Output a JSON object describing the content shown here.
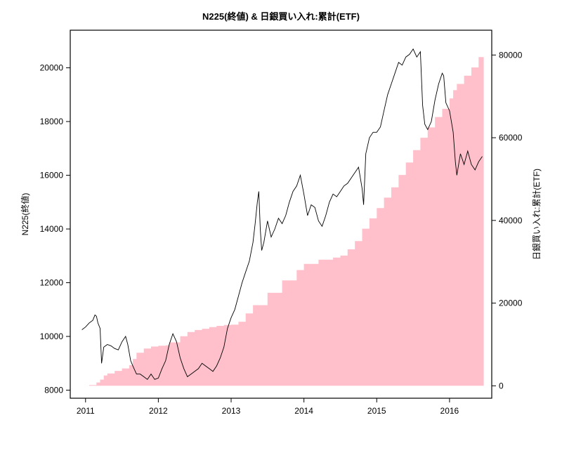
{
  "chart_data": {
    "type": "area+line",
    "title": "N225(終値) & 日銀買い入れ:累計(ETF)",
    "ylabel_left": "N225(終値)",
    "ylabel_right": "日銀買い入れ:累計(ETF)",
    "xlabel": "",
    "x_ticks": [
      "2011",
      "2012",
      "2013",
      "2014",
      "2015",
      "2016"
    ],
    "xlim": [
      2010.79,
      2016.58
    ],
    "ylim_left": [
      7700,
      21400
    ],
    "ylim_right": [
      -3000,
      86000
    ],
    "y_ticks_left": [
      8000,
      10000,
      12000,
      14000,
      16000,
      18000,
      20000
    ],
    "y_ticks_right": [
      0,
      20000,
      40000,
      60000,
      80000
    ],
    "grid": false,
    "legend": "none",
    "series": [
      {
        "label": "N225(終値)",
        "kind": "line",
        "axis": "left",
        "color": "#000000",
        "x": [
          2010.95,
          2011.0,
          2011.05,
          2011.1,
          2011.13,
          2011.15,
          2011.17,
          2011.2,
          2011.22,
          2011.25,
          2011.3,
          2011.35,
          2011.4,
          2011.45,
          2011.5,
          2011.55,
          2011.58,
          2011.62,
          2011.65,
          2011.7,
          2011.75,
          2011.8,
          2011.85,
          2011.9,
          2011.95,
          2012.0,
          2012.05,
          2012.1,
          2012.15,
          2012.2,
          2012.25,
          2012.3,
          2012.35,
          2012.4,
          2012.45,
          2012.5,
          2012.55,
          2012.6,
          2012.65,
          2012.7,
          2012.75,
          2012.8,
          2012.85,
          2012.9,
          2012.95,
          2013.0,
          2013.05,
          2013.1,
          2013.15,
          2013.2,
          2013.25,
          2013.3,
          2013.33,
          2013.36,
          2013.38,
          2013.4,
          2013.42,
          2013.45,
          2013.5,
          2013.55,
          2013.6,
          2013.65,
          2013.7,
          2013.75,
          2013.8,
          2013.85,
          2013.9,
          2013.95,
          2014.0,
          2014.05,
          2014.1,
          2014.15,
          2014.2,
          2014.25,
          2014.3,
          2014.35,
          2014.4,
          2014.45,
          2014.5,
          2014.55,
          2014.6,
          2014.65,
          2014.7,
          2014.75,
          2014.8,
          2014.82,
          2014.85,
          2014.9,
          2014.95,
          2015.0,
          2015.05,
          2015.1,
          2015.15,
          2015.2,
          2015.25,
          2015.3,
          2015.35,
          2015.4,
          2015.45,
          2015.5,
          2015.55,
          2015.6,
          2015.63,
          2015.66,
          2015.7,
          2015.75,
          2015.8,
          2015.85,
          2015.9,
          2015.92,
          2015.95,
          2016.0,
          2016.05,
          2016.08,
          2016.1,
          2016.15,
          2016.2,
          2016.25,
          2016.3,
          2016.35,
          2016.4,
          2016.45
        ],
        "values": [
          10250,
          10350,
          10500,
          10600,
          10800,
          10750,
          10500,
          10300,
          9000,
          9600,
          9700,
          9650,
          9550,
          9500,
          9800,
          10000,
          9700,
          9100,
          8900,
          8600,
          8600,
          8500,
          8400,
          8600,
          8400,
          8450,
          8800,
          9100,
          9700,
          10100,
          9800,
          9200,
          8800,
          8500,
          8600,
          8700,
          8800,
          9000,
          8900,
          8800,
          8700,
          8900,
          9200,
          9600,
          10300,
          10700,
          11000,
          11500,
          12000,
          12400,
          12800,
          13500,
          14200,
          15000,
          15400,
          14000,
          13200,
          13500,
          14300,
          13700,
          14000,
          14400,
          14200,
          14500,
          15000,
          15400,
          15600,
          16000,
          15300,
          14500,
          14900,
          14800,
          14300,
          14100,
          14500,
          15000,
          15300,
          15200,
          15400,
          15600,
          15700,
          15900,
          16100,
          16300,
          15500,
          14900,
          16800,
          17400,
          17600,
          17600,
          17800,
          18400,
          19000,
          19400,
          19800,
          20200,
          20100,
          20400,
          20500,
          20700,
          20400,
          20600,
          18600,
          17900,
          17700,
          18000,
          18800,
          19400,
          19800,
          19700,
          18700,
          18400,
          17600,
          16500,
          16000,
          16800,
          16400,
          16900,
          16400,
          16200,
          16500,
          16700
        ]
      },
      {
        "label": "日銀買い入れ:累計(ETF)",
        "kind": "area",
        "axis": "right",
        "color": "#FFC0CB",
        "x": [
          2010.95,
          2011.05,
          2011.15,
          2011.2,
          2011.25,
          2011.3,
          2011.4,
          2011.5,
          2011.6,
          2011.65,
          2011.7,
          2011.8,
          2011.9,
          2012.0,
          2012.1,
          2012.15,
          2012.3,
          2012.4,
          2012.5,
          2012.6,
          2012.7,
          2012.8,
          2012.9,
          2013.0,
          2013.1,
          2013.2,
          2013.3,
          2013.5,
          2013.7,
          2013.9,
          2014.0,
          2014.2,
          2014.4,
          2014.5,
          2014.6,
          2014.7,
          2014.8,
          2014.9,
          2015.0,
          2015.1,
          2015.2,
          2015.3,
          2015.4,
          2015.5,
          2015.6,
          2015.7,
          2015.8,
          2015.9,
          2016.0,
          2016.05,
          2016.1,
          2016.2,
          2016.3,
          2016.4,
          2016.47
        ],
        "values": [
          0,
          200,
          800,
          1500,
          2500,
          3000,
          3600,
          4200,
          5000,
          6500,
          8000,
          9000,
          9500,
          9700,
          9800,
          10500,
          12000,
          13000,
          13500,
          13800,
          14200,
          14500,
          14700,
          14800,
          15500,
          17500,
          19500,
          22500,
          25500,
          28000,
          29500,
          30500,
          31000,
          31500,
          33000,
          35000,
          38000,
          40500,
          43000,
          45500,
          48000,
          51000,
          54000,
          57000,
          60000,
          62500,
          65000,
          67000,
          69500,
          71500,
          73000,
          75000,
          77000,
          79500,
          82000
        ]
      }
    ]
  }
}
